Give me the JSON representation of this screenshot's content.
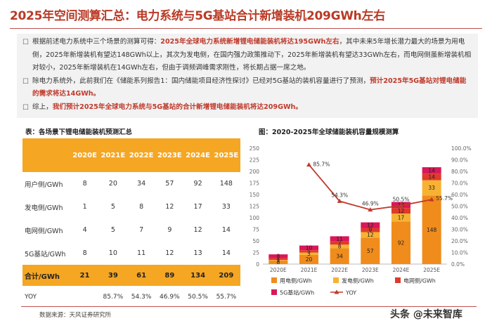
{
  "title": "2025年空间测算汇总：电力系统与5G基站合计新增装机209GWh左右",
  "summary": {
    "p1": {
      "t1": "根据前述电力系统中三个场景的测算可得：",
      "r1": "2025年全球电力系统新增锂电储能装机将达195GWh左右",
      "t2": "，其中未来5年增长潜力最大的场景为用电侧，2025年新增装机有望达148GWh以上，其次为发电侧，在国内强力政策推动下，2025年新增装机有望达33GWh左右，而电网侧虽新增装机相对较小，2025年新增装机在14GWh左右，但由于调频调峰需求刚性，将长期占据一席之地。"
    },
    "p2": {
      "t1": "除电力系统外，此前我们在《储能系列报告1：国内储能项目经济性探讨》已经对5G基站的装机容量进行了预测，",
      "r1": "预计2025年5G基站对锂电储能的需求将达14GWh。"
    },
    "p3": {
      "t1": "综上，",
      "r1": "我们预计2025年全球电力系统与5G基站的合计新增锂电储能装机将达209GWh。"
    }
  },
  "table": {
    "title": "表：各场景下锂电储能装机预测汇总",
    "headers": [
      "",
      "2020E",
      "2021E",
      "2022E",
      "2023E",
      "2024E",
      "2025E"
    ],
    "rows": [
      [
        "用户侧/GWh",
        "8",
        "20",
        "34",
        "57",
        "92",
        "148"
      ],
      [
        "发电侧/GWh",
        "1",
        "5",
        "8",
        "12",
        "17",
        "33"
      ],
      [
        "电网侧/GWh",
        "4",
        "5",
        "7",
        "9",
        "12",
        "14"
      ],
      [
        "5G基站/GWh",
        "8",
        "10",
        "11",
        "12",
        "13",
        "14"
      ]
    ],
    "total": [
      "合计/GWh",
      "21",
      "39",
      "61",
      "89",
      "134",
      "209"
    ],
    "yoy": [
      "YOY",
      "",
      "85.7%",
      "54.3%",
      "46.9%",
      "50.5%",
      "55.7%"
    ]
  },
  "chart_title": "图：2020-2025年全球储能装机容量规模测算",
  "chart_data": {
    "type": "bar",
    "stacked": true,
    "categories": [
      "2020E",
      "2021E",
      "2022E",
      "2023E",
      "2024E",
      "2025E"
    ],
    "series": [
      {
        "name": "用电侧/GWh",
        "color": "#f08c1c",
        "values": [
          8,
          20,
          34,
          57,
          92,
          148
        ]
      },
      {
        "name": "发电侧/GWh",
        "color": "#f7b233",
        "values": [
          1,
          5,
          8,
          12,
          17,
          33
        ]
      },
      {
        "name": "电网侧/GWh",
        "color": "#e03a2a",
        "values": [
          4,
          5,
          7,
          9,
          12,
          14
        ]
      },
      {
        "name": "5G基站/GWh",
        "color": "#d8185a",
        "values": [
          8,
          10,
          11,
          12,
          13,
          14
        ]
      }
    ],
    "line": {
      "name": "YOY",
      "color": "#c0392b",
      "values": [
        null,
        85.7,
        54.3,
        46.9,
        50.5,
        55.7
      ],
      "labels": [
        "",
        "85.7%",
        "54.3%",
        "46.9%",
        "50.5%",
        "55.7%"
      ]
    },
    "y_left": {
      "min": 0,
      "max": 250,
      "ticks": [
        "0",
        "25",
        "50",
        "75",
        "100",
        "125",
        "150",
        "175",
        "200",
        "225",
        "250"
      ]
    },
    "y_right": {
      "min": 0,
      "max": 100,
      "ticks": [
        "0.0%",
        "10.0%",
        "20.0%",
        "30.0%",
        "40.0%",
        "50.0%",
        "60.0%",
        "70.0%",
        "80.0%",
        "90.0%",
        "100.0%"
      ]
    },
    "legend_position": "bottom"
  },
  "source": "数据来源：天风证券研究所",
  "watermark": "头条 @未来智库"
}
